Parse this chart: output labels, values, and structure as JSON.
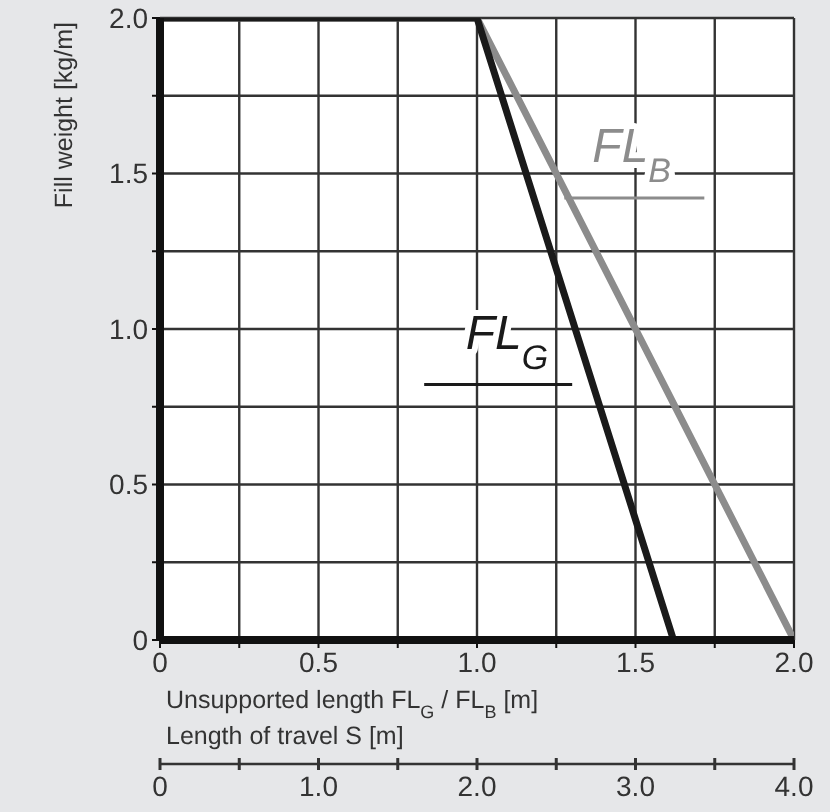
{
  "chart_data": {
    "type": "line",
    "ylabel": "Fill weight [kg/m]",
    "xlabel": "Unsupported length FL$_{G}$ / FL$_{B}$ [m]",
    "x2label": "Length of travel S [m]",
    "series": [
      {
        "name": "FL$_{B}$",
        "color": "#8c8c8c",
        "x": [
          0,
          1.0,
          2.0
        ],
        "values": [
          2.0,
          2.0,
          0
        ]
      },
      {
        "name": "FL$_{G}$",
        "color": "#1a1a1a",
        "x": [
          0,
          1.0,
          1.62
        ],
        "values": [
          2.0,
          2.0,
          0
        ]
      }
    ],
    "xlim": [
      0,
      2.0
    ],
    "xticks": [
      0,
      {
        "value": 0.25,
        "label": null
      },
      0.5,
      {
        "value": 0.75,
        "label": null
      },
      {
        "value": 1,
        "label": "1.0"
      },
      {
        "value": 1.25,
        "label": null
      },
      1.5,
      {
        "value": 1.75,
        "label": null
      },
      {
        "value": 2,
        "label": "2.0"
      }
    ],
    "ylim": [
      0,
      2.0
    ],
    "yticks": [
      0,
      {
        "value": 0.25,
        "label": null
      },
      0.5,
      {
        "value": 0.75,
        "label": null
      },
      {
        "value": 1,
        "label": "1.0"
      },
      {
        "value": 1.25,
        "label": null
      },
      1.5,
      {
        "value": 1.75,
        "label": null
      },
      {
        "value": 2,
        "label": "2.0"
      }
    ],
    "x2lim": [
      0,
      4.0
    ],
    "x2ticks": [
      0,
      {
        "value": 0.5,
        "label": null
      },
      {
        "value": 1,
        "label": "1.0"
      },
      {
        "value": 1.5,
        "label": null
      },
      {
        "value": 2,
        "label": "2.0"
      },
      {
        "value": 2.5,
        "label": null
      },
      {
        "value": 3,
        "label": "3.0"
      },
      {
        "value": 3.5,
        "label": null
      },
      {
        "value": 4,
        "label": "4.0"
      }
    ],
    "grid": true,
    "legend": false,
    "marker": "none",
    "line_style": "solid"
  }
}
